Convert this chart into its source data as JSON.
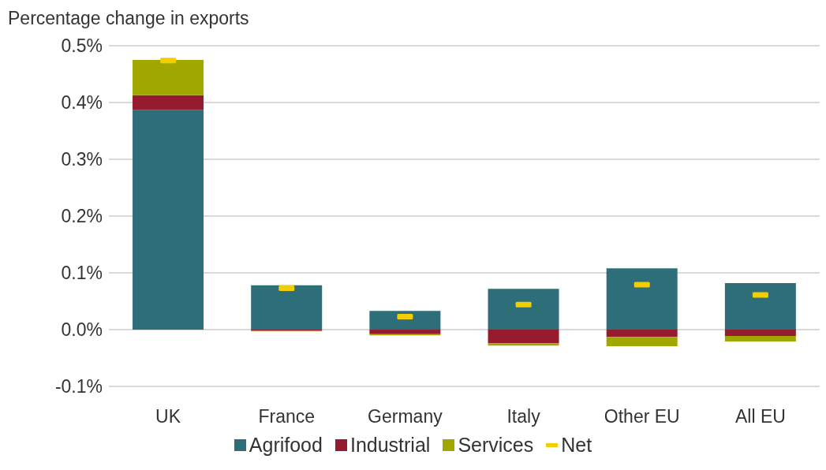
{
  "chart_data": {
    "type": "bar",
    "stacked": true,
    "ylabel": "Percentage change in exports",
    "categories": [
      "UK",
      "France",
      "Germany",
      "Italy",
      "Other EU",
      "All EU"
    ],
    "series": [
      {
        "name": "Agrifood",
        "color": "#2e6e78",
        "values": [
          0.387,
          0.078,
          0.033,
          0.072,
          0.108,
          0.082
        ]
      },
      {
        "name": "Industrial",
        "color": "#951c2f",
        "values": [
          0.026,
          -0.002,
          -0.008,
          -0.024,
          -0.013,
          -0.011
        ]
      },
      {
        "name": "Services",
        "color": "#a0a800",
        "values": [
          0.062,
          -0.001,
          -0.002,
          -0.004,
          -0.016,
          -0.01
        ]
      },
      {
        "name": "Net",
        "type": "scatter",
        "color": "#f2cd00",
        "values": [
          0.474,
          0.073,
          0.023,
          0.044,
          0.079,
          0.061
        ]
      }
    ],
    "ylim": [
      -0.1,
      0.5
    ],
    "yticks": [
      {
        "value": -0.1,
        "label": "-0.1%"
      },
      {
        "value": 0,
        "label": "0.0%"
      },
      {
        "value": 0.1,
        "label": "0.1%"
      },
      {
        "value": 0.2,
        "label": "0.2%"
      },
      {
        "value": 0.3,
        "label": "0.3%"
      },
      {
        "value": 0.4,
        "label": "0.4%"
      },
      {
        "value": 0.5,
        "label": "0.5%"
      }
    ],
    "grid": "y",
    "legend": "bottom"
  }
}
